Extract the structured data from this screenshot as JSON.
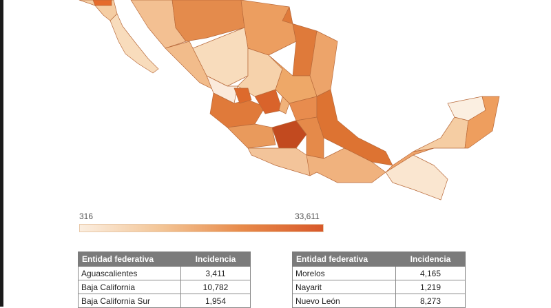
{
  "legend": {
    "min_label": "316",
    "max_label": "33,611"
  },
  "tables": [
    {
      "headers": [
        "Entidad federativa",
        "Incidencia"
      ],
      "rows": [
        [
          "Aguascalientes",
          "3,411"
        ],
        [
          "Baja California",
          "10,782"
        ],
        [
          "Baja California Sur",
          "1,954"
        ]
      ]
    },
    {
      "headers": [
        "Entidad federativa",
        "Incidencia"
      ],
      "rows": [
        [
          "Morelos",
          "4,165"
        ],
        [
          "Nayarit",
          "1,219"
        ],
        [
          "Nuevo León",
          "8,273"
        ]
      ]
    }
  ]
}
